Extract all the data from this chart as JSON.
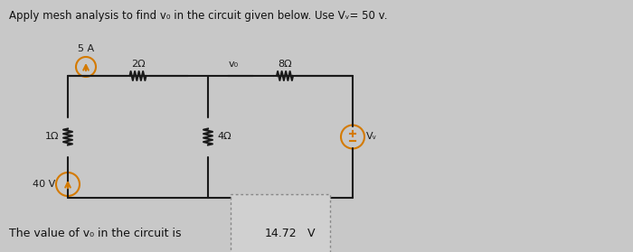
{
  "title": "Apply mesh analysis to find v₀ in the circuit given below. Use Vᵥ= 50 v.",
  "bg_color": "#c8c8c8",
  "wire_color": "#1a1a1a",
  "component_color": "#1a1a1a",
  "source_color": "#d47a00",
  "result_text": "The value of v₀ in the circuit is",
  "result_value": "14.72",
  "result_unit": "V",
  "label_2ohm": "2Ω",
  "label_8ohm": "8Ω",
  "label_1ohm": "1Ω",
  "label_4ohm": "4Ω",
  "label_5A": "5 A",
  "label_40V": "40 V",
  "label_Vy": "Vᵥ",
  "label_vo": "v₀"
}
